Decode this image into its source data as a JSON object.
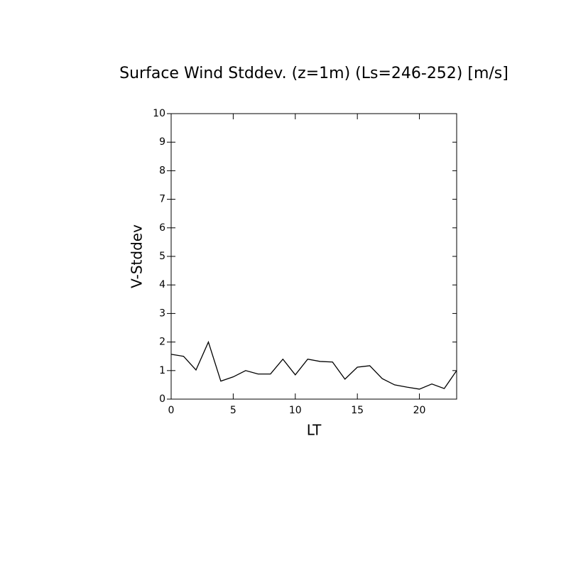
{
  "chart_data": {
    "type": "line",
    "title": "Surface Wind Stddev. (z=1m) (Ls=246-252) [m/s]",
    "xlabel": "LT",
    "ylabel": "V-Stddev",
    "x": [
      0,
      1,
      2,
      3,
      4,
      5,
      6,
      7,
      8,
      9,
      10,
      11,
      12,
      13,
      14,
      15,
      16,
      17,
      18,
      19,
      20,
      21,
      22,
      23
    ],
    "series": [
      {
        "color": "#000000",
        "values": [
          1.57,
          1.5,
          1.02,
          2.0,
          0.63,
          0.78,
          1.0,
          0.88,
          0.88,
          1.4,
          0.85,
          1.4,
          1.32,
          1.3,
          0.7,
          1.12,
          1.17,
          0.72,
          0.5,
          0.42,
          0.35,
          0.53,
          0.37,
          1.0
        ]
      }
    ],
    "xlim": [
      0,
      23
    ],
    "xticks": [
      0,
      5,
      10,
      15,
      20
    ],
    "ylim": [
      0,
      10
    ],
    "yticks": [
      0,
      1,
      2,
      3,
      4,
      5,
      6,
      7,
      8,
      9,
      10
    ],
    "grid": false
  }
}
